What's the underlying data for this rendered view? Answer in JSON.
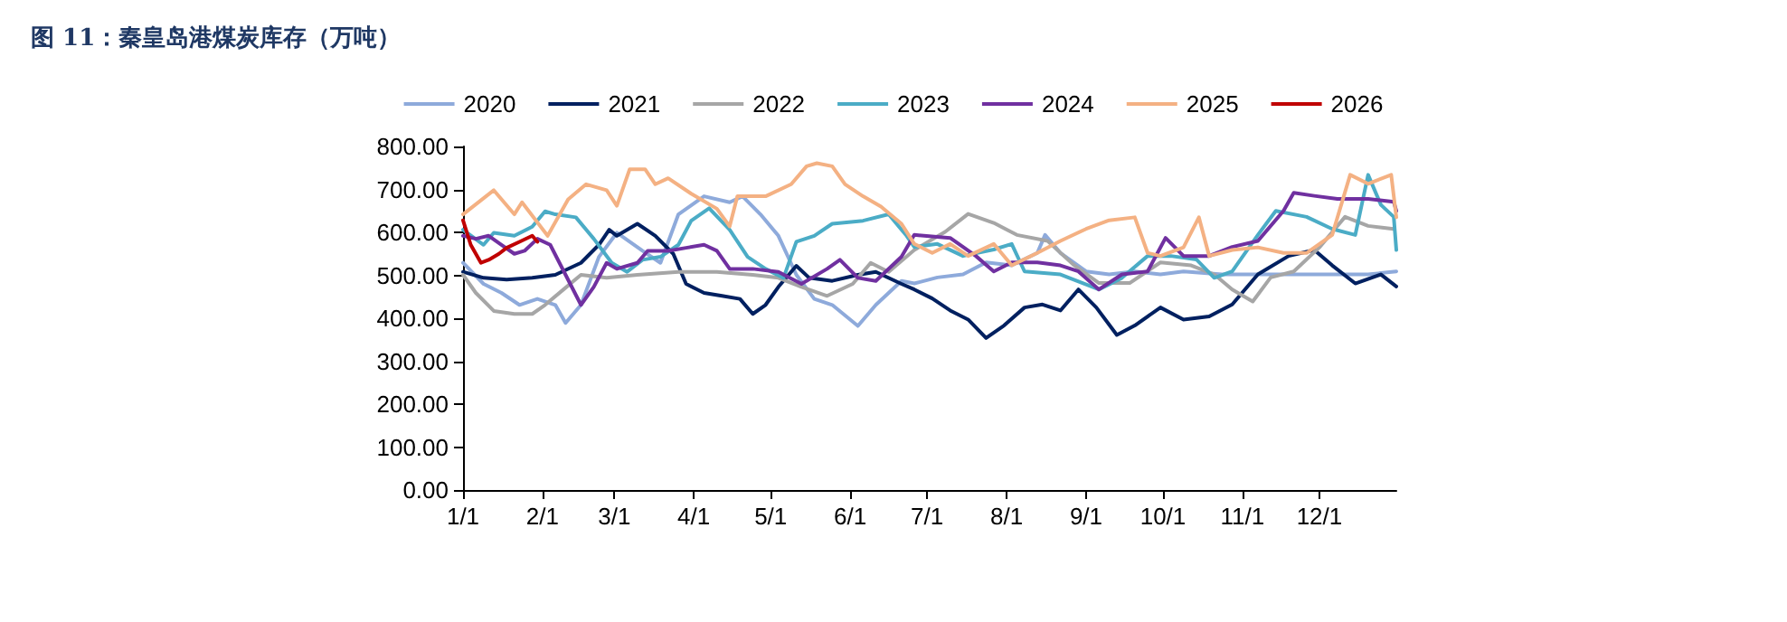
{
  "chart_data": {
    "type": "line",
    "title": "图 11：秦皇岛港煤炭库存（万吨）",
    "xlim": [
      "--01-01",
      "--12-31"
    ],
    "xticks": [
      {
        "value": "--01-01",
        "label": "1/1"
      },
      {
        "value": "--02-01",
        "label": "2/1"
      },
      {
        "value": "--03-01",
        "label": "3/1"
      },
      {
        "value": "--04-01",
        "label": "4/1"
      },
      {
        "value": "--05-01",
        "label": "5/1"
      },
      {
        "value": "--06-01",
        "label": "6/1"
      },
      {
        "value": "--07-01",
        "label": "7/1"
      },
      {
        "value": "--08-01",
        "label": "8/1"
      },
      {
        "value": "--09-01",
        "label": "9/1"
      },
      {
        "value": "--10-01",
        "label": "10/1"
      },
      {
        "value": "--11-01",
        "label": "11/1"
      },
      {
        "value": "--12-01",
        "label": "12/1"
      }
    ],
    "ylim": [
      0,
      800
    ],
    "yticks": [
      {
        "value": 0,
        "label": "0.00"
      },
      {
        "value": 100,
        "label": "100.00"
      },
      {
        "value": 200,
        "label": "200.00"
      },
      {
        "value": 300,
        "label": "300.00"
      },
      {
        "value": 400,
        "label": "400.00"
      },
      {
        "value": 500,
        "label": "500.00"
      },
      {
        "value": 600,
        "label": "600.00"
      },
      {
        "value": 700,
        "label": "700.00"
      },
      {
        "value": 800,
        "label": "800.00"
      }
    ],
    "grid": false,
    "legend": "top",
    "marker": "none",
    "line_style": "solid",
    "series": [
      {
        "name": "2020",
        "color": "#8eaadb",
        "x": [
          "--01-01",
          "--01-09",
          "--01-16",
          "--01-23",
          "--01-30",
          "--02-06",
          "--02-10",
          "--02-16",
          "--02-23",
          "--03-02",
          "--03-12",
          "--03-19",
          "--03-26",
          "--03-31",
          "--04-05",
          "--04-15",
          "--04-20",
          "--04-27",
          "--05-04",
          "--05-11",
          "--05-18",
          "--05-25",
          "--06-04",
          "--06-11",
          "--06-21",
          "--06-26",
          "--07-05",
          "--07-15",
          "--07-24",
          "--08-03",
          "--08-13",
          "--08-16",
          "--08-22",
          "--09-01",
          "--09-10",
          "--09-20",
          "--09-30",
          "--10-09",
          "--10-24",
          "--11-07",
          "--11-21",
          "--12-06",
          "--12-20",
          "--12-31"
        ],
        "values": [
          529,
          480,
          459,
          431,
          445,
          431,
          389,
          431,
          543,
          599,
          557,
          529,
          642,
          663,
          684,
          670,
          684,
          642,
          592,
          501,
          445,
          431,
          382,
          431,
          487,
          481,
          495,
          502,
          530,
          523,
          552,
          594,
          552,
          509,
          502,
          509,
          502,
          509,
          502,
          502,
          502,
          502,
          502,
          509
        ]
      },
      {
        "name": "2021",
        "color": "#002060",
        "x": [
          "--01-01",
          "--01-09",
          "--01-18",
          "--01-28",
          "--02-06",
          "--02-16",
          "--02-23",
          "--02-27",
          "--03-02",
          "--03-10",
          "--03-17",
          "--03-24",
          "--03-29",
          "--04-05",
          "--04-12",
          "--04-19",
          "--04-24",
          "--04-29",
          "--05-04",
          "--05-11",
          "--05-16",
          "--05-25",
          "--06-04",
          "--06-11",
          "--06-21",
          "--06-26",
          "--07-03",
          "--07-10",
          "--07-17",
          "--07-24",
          "--07-31",
          "--08-08",
          "--08-15",
          "--08-22",
          "--08-29",
          "--09-05",
          "--09-13",
          "--09-20",
          "--09-30",
          "--10-09",
          "--10-19",
          "--10-28",
          "--11-07",
          "--11-19",
          "--11-29",
          "--12-06",
          "--12-15",
          "--12-25",
          "--12-31"
        ],
        "values": [
          508,
          494,
          490,
          494,
          501,
          529,
          571,
          606,
          592,
          620,
          592,
          550,
          480,
          459,
          452,
          445,
          410,
          431,
          473,
          522,
          494,
          487,
          501,
          508,
          480,
          467,
          446,
          418,
          397,
          354,
          383,
          425,
          432,
          418,
          467,
          425,
          361,
          383,
          425,
          397,
          404,
          432,
          502,
          545,
          559,
          523,
          481,
          502,
          474
        ]
      },
      {
        "name": "2022",
        "color": "#a6a6a6",
        "x": [
          "--01-01",
          "--01-06",
          "--01-13",
          "--01-21",
          "--01-28",
          "--02-02",
          "--02-09",
          "--02-16",
          "--02-26",
          "--03-10",
          "--03-26",
          "--04-10",
          "--04-24",
          "--05-04",
          "--05-13",
          "--05-23",
          "--06-02",
          "--06-09",
          "--06-16",
          "--06-26",
          "--07-08",
          "--07-17",
          "--07-27",
          "--08-05",
          "--08-17",
          "--08-27",
          "--09-06",
          "--09-18",
          "--09-30",
          "--10-12",
          "--10-21",
          "--10-28",
          "--11-05",
          "--11-12",
          "--11-21",
          "--12-01",
          "--12-11",
          "--12-20",
          "--12-30"
        ],
        "values": [
          501,
          459,
          417,
          410,
          410,
          431,
          466,
          501,
          494,
          501,
          508,
          508,
          501,
          494,
          473,
          452,
          480,
          529,
          508,
          559,
          601,
          643,
          622,
          594,
          580,
          525,
          482,
          482,
          530,
          523,
          502,
          467,
          439,
          495,
          509,
          565,
          636,
          615,
          608
        ]
      },
      {
        "name": "2023",
        "color": "#4bacc6",
        "x": [
          "--01-01",
          "--01-09",
          "--01-13",
          "--01-21",
          "--01-28",
          "--02-02",
          "--02-06",
          "--02-14",
          "--02-21",
          "--02-28",
          "--03-06",
          "--03-12",
          "--03-19",
          "--03-26",
          "--03-31",
          "--04-07",
          "--04-15",
          "--04-22",
          "--04-29",
          "--05-06",
          "--05-11",
          "--05-18",
          "--05-25",
          "--06-06",
          "--06-16",
          "--06-23",
          "--06-26",
          "--07-05",
          "--07-15",
          "--07-27",
          "--08-03",
          "--08-08",
          "--08-22",
          "--09-06",
          "--09-15",
          "--09-25",
          "--10-04",
          "--10-14",
          "--10-21",
          "--10-28",
          "--11-07",
          "--11-14",
          "--11-26",
          "--12-06",
          "--12-15",
          "--12-20",
          "--12-25",
          "--12-30",
          "--12-31"
        ],
        "values": [
          606,
          571,
          599,
          592,
          613,
          649,
          642,
          635,
          585,
          529,
          508,
          536,
          543,
          571,
          627,
          656,
          606,
          543,
          515,
          494,
          578,
          592,
          620,
          627,
          642,
          592,
          566,
          573,
          545,
          560,
          573,
          509,
          502,
          467,
          494,
          545,
          545,
          537,
          494,
          509,
          594,
          650,
          636,
          608,
          594,
          734,
          664,
          636,
          559
        ]
      },
      {
        "name": "2024",
        "color": "#7030a0",
        "x": [
          "--01-01",
          "--01-06",
          "--01-11",
          "--01-16",
          "--01-21",
          "--01-25",
          "--01-30",
          "--02-04",
          "--02-10",
          "--02-16",
          "--02-21",
          "--02-26",
          "--03-02",
          "--03-10",
          "--03-14",
          "--03-22",
          "--03-29",
          "--04-05",
          "--04-10",
          "--04-15",
          "--04-24",
          "--05-04",
          "--05-13",
          "--05-23",
          "--05-28",
          "--06-04",
          "--06-11",
          "--06-21",
          "--06-26",
          "--07-10",
          "--07-15",
          "--07-20",
          "--07-27",
          "--08-03",
          "--08-13",
          "--08-22",
          "--08-29",
          "--09-06",
          "--09-15",
          "--09-25",
          "--10-02",
          "--10-09",
          "--10-19",
          "--10-28",
          "--11-07",
          "--11-17",
          "--11-21",
          "--11-29",
          "--12-08",
          "--12-20",
          "--12-30",
          "--12-31"
        ],
        "values": [
          592,
          585,
          592,
          571,
          550,
          557,
          585,
          571,
          501,
          431,
          473,
          529,
          515,
          529,
          557,
          557,
          564,
          571,
          557,
          515,
          515,
          508,
          480,
          515,
          536,
          494,
          487,
          543,
          594,
          587,
          566,
          545,
          509,
          530,
          530,
          523,
          509,
          467,
          502,
          509,
          587,
          545,
          545,
          566,
          580,
          650,
          692,
          685,
          678,
          678,
          671,
          650
        ]
      },
      {
        "name": "2025",
        "color": "#f4b183",
        "x": [
          "--01-01",
          "--01-13",
          "--01-21",
          "--01-24",
          "--02-03",
          "--02-11",
          "--02-18",
          "--02-26",
          "--03-02",
          "--03-07",
          "--03-13",
          "--03-17",
          "--03-22",
          "--03-31",
          "--04-10",
          "--04-15",
          "--04-18",
          "--04-29",
          "--05-09",
          "--05-15",
          "--05-19",
          "--05-25",
          "--05-30",
          "--06-06",
          "--06-13",
          "--06-21",
          "--06-26",
          "--07-03",
          "--07-10",
          "--07-17",
          "--07-27",
          "--08-03",
          "--08-13",
          "--08-22",
          "--09-01",
          "--09-10",
          "--09-20",
          "--09-25",
          "--09-30",
          "--10-09",
          "--10-15",
          "--10-19",
          "--10-28",
          "--11-07",
          "--11-17",
          "--11-26",
          "--12-06",
          "--12-13",
          "--12-20",
          "--12-29",
          "--12-31"
        ],
        "values": [
          642,
          698,
          642,
          670,
          592,
          677,
          712,
          698,
          662,
          747,
          747,
          712,
          726,
          690,
          655,
          614,
          684,
          684,
          712,
          754,
          761,
          754,
          712,
          684,
          660,
          620,
          573,
          552,
          573,
          545,
          573,
          523,
          552,
          580,
          608,
          628,
          635,
          552,
          545,
          565,
          635,
          545,
          559,
          565,
          552,
          552,
          594,
          734,
          713,
          734,
          635
        ]
      },
      {
        "name": "2026",
        "color": "#c00000",
        "x": [
          "--01-01",
          "--01-04",
          "--01-08",
          "--01-11",
          "--01-15",
          "--01-18",
          "--01-23",
          "--01-28",
          "--01-30"
        ],
        "values": [
          628,
          571,
          529,
          536,
          550,
          564,
          578,
          592,
          578
        ]
      }
    ]
  }
}
